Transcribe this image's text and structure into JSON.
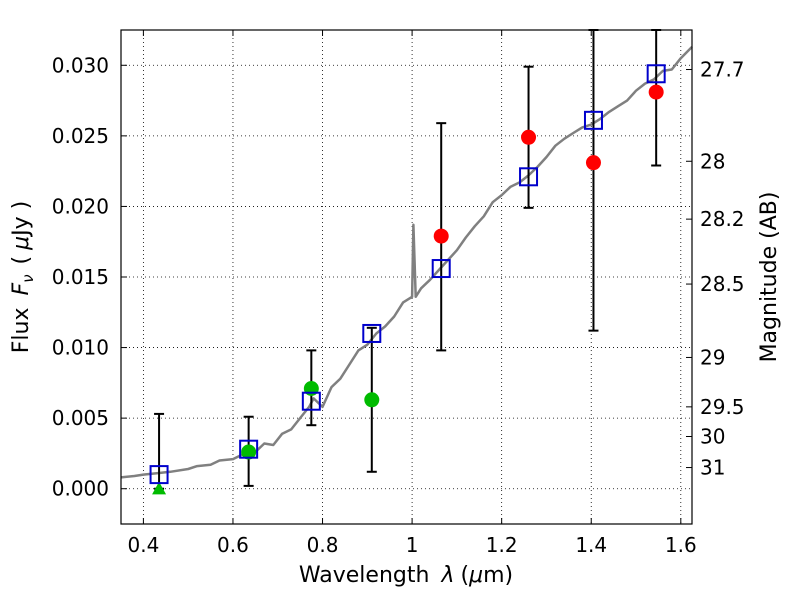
{
  "chart_data": {
    "type": "scatter",
    "title": "",
    "xlabel_prefix": "Wavelength",
    "xlabel_symbol": "λ",
    "xlabel_unit_open": "(",
    "xlabel_unit_mu": "μ",
    "xlabel_unit_rest": "m)",
    "ylabel_prefix": "Flux",
    "ylabel_symbol": "F",
    "ylabel_subscript": "ν",
    "ylabel_unit_open": "(",
    "ylabel_unit_mu": "μ",
    "ylabel_unit_rest": "Jy )",
    "y2label": "Magnitude (AB)",
    "xlim": [
      0.35,
      1.625
    ],
    "ylim": [
      -0.0025,
      0.0325
    ],
    "grid": true,
    "x_ticks": [
      {
        "value": 0.4,
        "label": "0.4"
      },
      {
        "value": 0.6,
        "label": "0.6"
      },
      {
        "value": 0.8,
        "label": "0.8"
      },
      {
        "value": 1.0,
        "label": "1"
      },
      {
        "value": 1.2,
        "label": "1.2"
      },
      {
        "value": 1.4,
        "label": "1.4"
      },
      {
        "value": 1.6,
        "label": "1.6"
      }
    ],
    "y_ticks": [
      {
        "value": 0.0,
        "label": "0.000"
      },
      {
        "value": 0.005,
        "label": "0.005"
      },
      {
        "value": 0.01,
        "label": "0.010"
      },
      {
        "value": 0.015,
        "label": "0.015"
      },
      {
        "value": 0.02,
        "label": "0.020"
      },
      {
        "value": 0.025,
        "label": "0.025"
      },
      {
        "value": 0.03,
        "label": "0.030"
      }
    ],
    "magnitude_ticks": [
      {
        "flux": 0.0297,
        "label": "27.7"
      },
      {
        "flux": 0.0232,
        "label": "28"
      },
      {
        "flux": 0.0191,
        "label": "28.2"
      },
      {
        "flux": 0.0145,
        "label": "28.5"
      },
      {
        "flux": 0.0093,
        "label": "29"
      },
      {
        "flux": 0.0058,
        "label": "29.5"
      },
      {
        "flux": 0.0037,
        "label": "30"
      },
      {
        "flux": 0.0015,
        "label": "31"
      }
    ],
    "template_spectrum": {
      "color": "#808080",
      "points": [
        [
          0.35,
          0.0008
        ],
        [
          0.38,
          0.0009
        ],
        [
          0.4,
          0.001
        ],
        [
          0.43,
          0.0011
        ],
        [
          0.46,
          0.0012
        ],
        [
          0.5,
          0.0014
        ],
        [
          0.52,
          0.0016
        ],
        [
          0.55,
          0.0017
        ],
        [
          0.57,
          0.002
        ],
        [
          0.6,
          0.0021
        ],
        [
          0.62,
          0.0024
        ],
        [
          0.65,
          0.0026
        ],
        [
          0.67,
          0.0032
        ],
        [
          0.69,
          0.0031
        ],
        [
          0.71,
          0.0039
        ],
        [
          0.73,
          0.0042
        ],
        [
          0.75,
          0.005
        ],
        [
          0.77,
          0.0058
        ],
        [
          0.78,
          0.0064
        ],
        [
          0.8,
          0.0058
        ],
        [
          0.82,
          0.0072
        ],
        [
          0.84,
          0.0078
        ],
        [
          0.86,
          0.0088
        ],
        [
          0.88,
          0.0098
        ],
        [
          0.9,
          0.0102
        ],
        [
          0.92,
          0.011
        ],
        [
          0.94,
          0.0115
        ],
        [
          0.96,
          0.0122
        ],
        [
          0.98,
          0.0132
        ],
        [
          1.0,
          0.0136
        ],
        [
          1.003,
          0.0187
        ],
        [
          1.008,
          0.0136
        ],
        [
          1.02,
          0.0142
        ],
        [
          1.04,
          0.0148
        ],
        [
          1.06,
          0.0155
        ],
        [
          1.08,
          0.0162
        ],
        [
          1.1,
          0.0169
        ],
        [
          1.12,
          0.0178
        ],
        [
          1.14,
          0.0186
        ],
        [
          1.16,
          0.0193
        ],
        [
          1.18,
          0.0203
        ],
        [
          1.2,
          0.0208
        ],
        [
          1.22,
          0.0214
        ],
        [
          1.24,
          0.0217
        ],
        [
          1.26,
          0.0222
        ],
        [
          1.28,
          0.0228
        ],
        [
          1.3,
          0.0235
        ],
        [
          1.32,
          0.0243
        ],
        [
          1.34,
          0.0248
        ],
        [
          1.36,
          0.0252
        ],
        [
          1.38,
          0.0256
        ],
        [
          1.4,
          0.0258
        ],
        [
          1.42,
          0.0262
        ],
        [
          1.44,
          0.0267
        ],
        [
          1.46,
          0.0271
        ],
        [
          1.48,
          0.0275
        ],
        [
          1.5,
          0.0282
        ],
        [
          1.52,
          0.0287
        ],
        [
          1.54,
          0.029
        ],
        [
          1.56,
          0.0296
        ],
        [
          1.58,
          0.0297
        ],
        [
          1.6,
          0.0305
        ],
        [
          1.625,
          0.0313
        ]
      ]
    },
    "model_fluxes": {
      "marker": "open-square",
      "color": "#0000cc",
      "points": [
        {
          "x": 0.435,
          "y": 0.001
        },
        {
          "x": 0.635,
          "y": 0.0028
        },
        {
          "x": 0.775,
          "y": 0.0062
        },
        {
          "x": 0.91,
          "y": 0.011
        },
        {
          "x": 1.065,
          "y": 0.0156
        },
        {
          "x": 1.26,
          "y": 0.0221
        },
        {
          "x": 1.405,
          "y": 0.0261
        },
        {
          "x": 1.545,
          "y": 0.0294
        }
      ]
    },
    "observed_fluxes": [
      {
        "x": 0.435,
        "y": 0.0,
        "marker": "triangle",
        "color": "#00bb00"
      },
      {
        "x": 0.635,
        "y": 0.0026,
        "marker": "circle",
        "color": "#00bb00"
      },
      {
        "x": 0.775,
        "y": 0.0071,
        "marker": "circle",
        "color": "#00bb00"
      },
      {
        "x": 0.91,
        "y": 0.0063,
        "marker": "circle",
        "color": "#00bb00"
      },
      {
        "x": 1.065,
        "y": 0.0179,
        "marker": "circle",
        "color": "#ff0000"
      },
      {
        "x": 1.26,
        "y": 0.0249,
        "marker": "circle",
        "color": "#ff0000"
      },
      {
        "x": 1.405,
        "y": 0.0231,
        "marker": "circle",
        "color": "#ff0000"
      },
      {
        "x": 1.545,
        "y": 0.0281,
        "marker": "circle",
        "color": "#ff0000"
      }
    ],
    "error_bars": [
      {
        "x": 0.435,
        "low": 0.0,
        "high": 0.0053
      },
      {
        "x": 0.635,
        "low": 0.0002,
        "high": 0.0051
      },
      {
        "x": 0.775,
        "low": 0.0045,
        "high": 0.0098
      },
      {
        "x": 0.91,
        "low": 0.0012,
        "high": 0.0114
      },
      {
        "x": 1.065,
        "low": 0.0098,
        "high": 0.0259
      },
      {
        "x": 1.26,
        "low": 0.0199,
        "high": 0.0299
      },
      {
        "x": 1.405,
        "low": 0.0112,
        "high": 0.0325
      },
      {
        "x": 1.545,
        "low": 0.0229,
        "high": 0.0325
      }
    ]
  }
}
